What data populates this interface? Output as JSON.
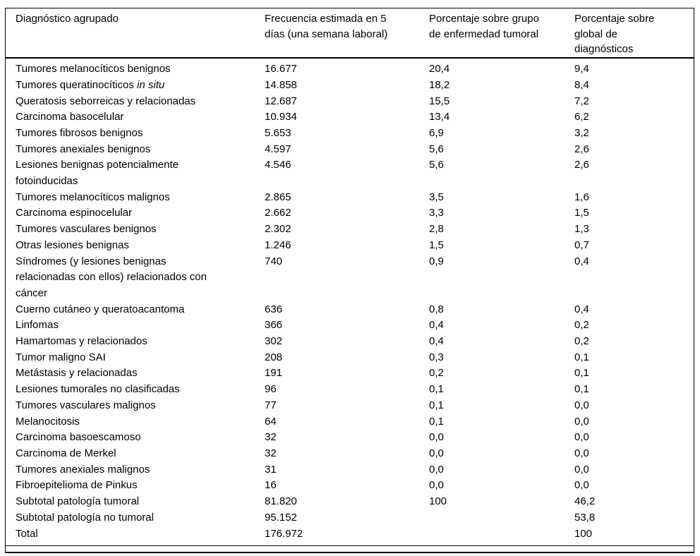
{
  "colors": {
    "background": "#ffffff",
    "text": "#000000",
    "border": "#000000"
  },
  "table": {
    "columns": [
      {
        "label": "Diagnóstico agrupado"
      },
      {
        "label": "Frecuencia estimada en 5\ndías (una semana laboral)"
      },
      {
        "label": "Porcentaje sobre grupo\nde enfermedad tumoral"
      },
      {
        "label": "Porcentaje sobre\nglobal de\ndiagnósticos"
      }
    ],
    "rows": [
      {
        "label": "Tumores melanocíticos benignos",
        "frequency": "16.677",
        "pct_tumoral": "20,4",
        "pct_global": "9,4"
      },
      {
        "label": "Tumores queratinocíticos ",
        "label_italic": "in situ",
        "frequency": "14.858",
        "pct_tumoral": "18,2",
        "pct_global": "8,4"
      },
      {
        "label": "Queratosis seborreicas y relacionadas",
        "frequency": "12.687",
        "pct_tumoral": "15,5",
        "pct_global": "7,2"
      },
      {
        "label": "Carcinoma basocelular",
        "frequency": "10.934",
        "pct_tumoral": "13,4",
        "pct_global": "6,2"
      },
      {
        "label": "Tumores fibrosos benignos",
        "frequency": "5.653",
        "pct_tumoral": "6,9",
        "pct_global": "3,2"
      },
      {
        "label": "Tumores anexiales benignos",
        "frequency": "4.597",
        "pct_tumoral": "5,6",
        "pct_global": "2,6"
      },
      {
        "label": "Lesiones benignas potencialmente\nfotoinducidas",
        "frequency": "4.546",
        "pct_tumoral": "5,6",
        "pct_global": "2,6"
      },
      {
        "label": "Tumores melanocíticos malignos",
        "frequency": "2.865",
        "pct_tumoral": "3,5",
        "pct_global": "1,6"
      },
      {
        "label": "Carcinoma espinocelular",
        "frequency": "2.662",
        "pct_tumoral": "3,3",
        "pct_global": "1,5"
      },
      {
        "label": "Tumores vasculares benignos",
        "frequency": "2.302",
        "pct_tumoral": "2,8",
        "pct_global": "1,3"
      },
      {
        "label": "Otras lesiones benignas",
        "frequency": "1.246",
        "pct_tumoral": "1,5",
        "pct_global": "0,7"
      },
      {
        "label": "Síndromes (y lesiones benignas\nrelacionadas con ellos) relacionados con\ncáncer",
        "frequency": "740",
        "pct_tumoral": "0,9",
        "pct_global": "0,4"
      },
      {
        "label": "Cuerno cutáneo y queratoacantoma",
        "frequency": "636",
        "pct_tumoral": "0,8",
        "pct_global": "0,4"
      },
      {
        "label": "Linfomas",
        "frequency": "366",
        "pct_tumoral": "0,4",
        "pct_global": "0,2"
      },
      {
        "label": "Hamartomas y relacionados",
        "frequency": "302",
        "pct_tumoral": "0,4",
        "pct_global": "0,2"
      },
      {
        "label": "Tumor maligno SAI",
        "frequency": "208",
        "pct_tumoral": "0,3",
        "pct_global": "0,1"
      },
      {
        "label": "Metástasis y relacionadas",
        "frequency": "191",
        "pct_tumoral": "0,2",
        "pct_global": "0,1"
      },
      {
        "label": "Lesiones tumorales no clasificadas",
        "frequency": "96",
        "pct_tumoral": "0,1",
        "pct_global": "0,1"
      },
      {
        "label": "Tumores vasculares malignos",
        "frequency": "77",
        "pct_tumoral": "0,1",
        "pct_global": "0,0"
      },
      {
        "label": "Melanocitosis",
        "frequency": "64",
        "pct_tumoral": "0,1",
        "pct_global": "0,0"
      },
      {
        "label": "Carcinoma basoescamoso",
        "frequency": "32",
        "pct_tumoral": "0,0",
        "pct_global": "0,0"
      },
      {
        "label": "Carcinoma de Merkel",
        "frequency": "32",
        "pct_tumoral": "0,0",
        "pct_global": "0,0"
      },
      {
        "label": "Tumores anexiales malignos",
        "frequency": "31",
        "pct_tumoral": "0,0",
        "pct_global": "0,0"
      },
      {
        "label": "Fibroepitelioma de Pinkus",
        "frequency": "16",
        "pct_tumoral": "0,0",
        "pct_global": "0,0"
      },
      {
        "label": "Subtotal patología tumoral",
        "frequency": "81.820",
        "pct_tumoral": "100",
        "pct_global": "46,2"
      },
      {
        "label": "Subtotal patología no tumoral",
        "frequency": "95.152",
        "pct_tumoral": "",
        "pct_global": "53,8"
      },
      {
        "label": "Total",
        "frequency": "176.972",
        "pct_tumoral": "",
        "pct_global": "100"
      }
    ]
  }
}
